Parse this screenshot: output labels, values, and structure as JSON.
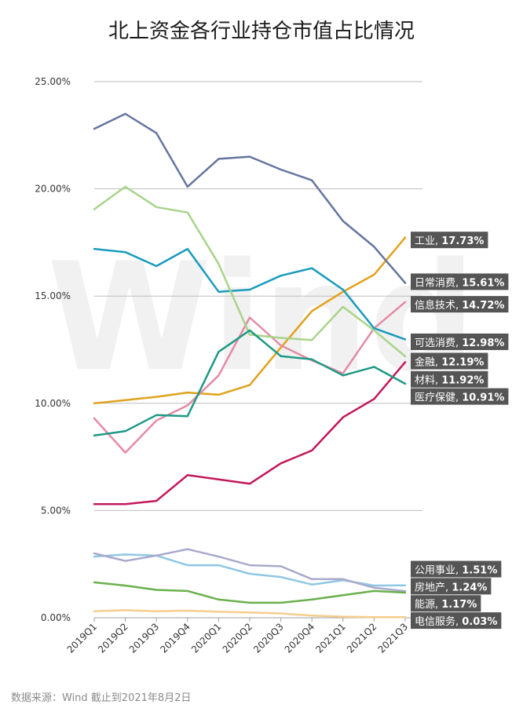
{
  "chart_data": {
    "type": "line",
    "title": "北上资金各行业持仓市值占比情况",
    "watermark": "Wind",
    "source": "数据来源：Wind   截止到2021年8月2日",
    "x": [
      "2019Q1",
      "2019Q2",
      "2019Q3",
      "2019Q4",
      "2020Q1",
      "2020Q2",
      "2020Q3",
      "2020Q4",
      "2021Q1",
      "2021Q2",
      "2021Q3"
    ],
    "ylim": [
      0,
      25
    ],
    "yticks": [
      0,
      5,
      10,
      15,
      20,
      25
    ],
    "ytick_labels": [
      "0.00%",
      "5.00%",
      "10.00%",
      "15.00%",
      "20.00%",
      "25.00%"
    ],
    "grid": true,
    "series": [
      {
        "name": "工业",
        "end_label": "17.73%",
        "color": "#e1a21b",
        "label_y": 17.6,
        "values": [
          10.0,
          10.15,
          10.3,
          10.5,
          10.4,
          10.85,
          12.6,
          14.3,
          15.2,
          16.0,
          17.73
        ]
      },
      {
        "name": "日常消费",
        "end_label": "15.61%",
        "color": "#65759f",
        "label_y": 15.65,
        "values": [
          22.8,
          23.5,
          22.6,
          20.1,
          21.4,
          21.5,
          20.9,
          20.4,
          18.5,
          17.3,
          15.61
        ]
      },
      {
        "name": "信息技术",
        "end_label": "14.72%",
        "color": "#e48aa6",
        "label_y": 14.6,
        "values": [
          9.3,
          7.7,
          9.2,
          9.9,
          11.3,
          14.0,
          12.7,
          12.0,
          11.4,
          13.5,
          14.72
        ]
      },
      {
        "name": "可选消费",
        "end_label": "12.98%",
        "color": "#1a9bbd",
        "label_y": 12.85,
        "values": [
          17.2,
          17.05,
          16.4,
          17.2,
          15.2,
          15.3,
          15.95,
          16.3,
          15.3,
          13.5,
          12.98
        ]
      },
      {
        "name": "金融",
        "end_label": "12.19%",
        "color": "#a8d48a",
        "label_y": 11.95,
        "values": [
          19.05,
          20.1,
          19.15,
          18.9,
          16.5,
          13.2,
          13.05,
          12.95,
          14.5,
          13.4,
          12.19
        ]
      },
      {
        "name": "材料",
        "end_label": "11.92%",
        "color": "#c2185b",
        "label_y": 11.1,
        "values": [
          5.3,
          5.3,
          5.45,
          6.65,
          6.45,
          6.25,
          7.2,
          7.8,
          9.35,
          10.2,
          11.92
        ]
      },
      {
        "name": "医疗保健",
        "end_label": "10.91%",
        "color": "#1e9985",
        "label_y": 10.3,
        "values": [
          8.5,
          8.7,
          9.45,
          9.4,
          12.4,
          13.4,
          12.2,
          12.05,
          11.3,
          11.7,
          10.91
        ]
      },
      {
        "name": "公用事业",
        "end_label": "1.51%",
        "color": "#8fc7e3",
        "label_y": 2.25,
        "values": [
          2.85,
          2.95,
          2.9,
          2.45,
          2.45,
          2.05,
          1.9,
          1.55,
          1.75,
          1.5,
          1.51
        ]
      },
      {
        "name": "房地产",
        "end_label": "1.24%",
        "color": "#a9aacb",
        "label_y": 1.45,
        "values": [
          3.0,
          2.65,
          2.9,
          3.2,
          2.85,
          2.45,
          2.4,
          1.8,
          1.8,
          1.4,
          1.24
        ]
      },
      {
        "name": "能源",
        "end_label": "1.17%",
        "color": "#6ab04c",
        "label_y": 0.65,
        "values": [
          1.65,
          1.5,
          1.3,
          1.25,
          0.85,
          0.7,
          0.7,
          0.85,
          1.05,
          1.25,
          1.17
        ]
      },
      {
        "name": "电信服务",
        "end_label": "0.03%",
        "color": "#f5cd8e",
        "label_y": -0.15,
        "values": [
          0.3,
          0.35,
          0.3,
          0.33,
          0.28,
          0.25,
          0.2,
          0.1,
          0.05,
          0.03,
          0.03
        ]
      }
    ]
  }
}
